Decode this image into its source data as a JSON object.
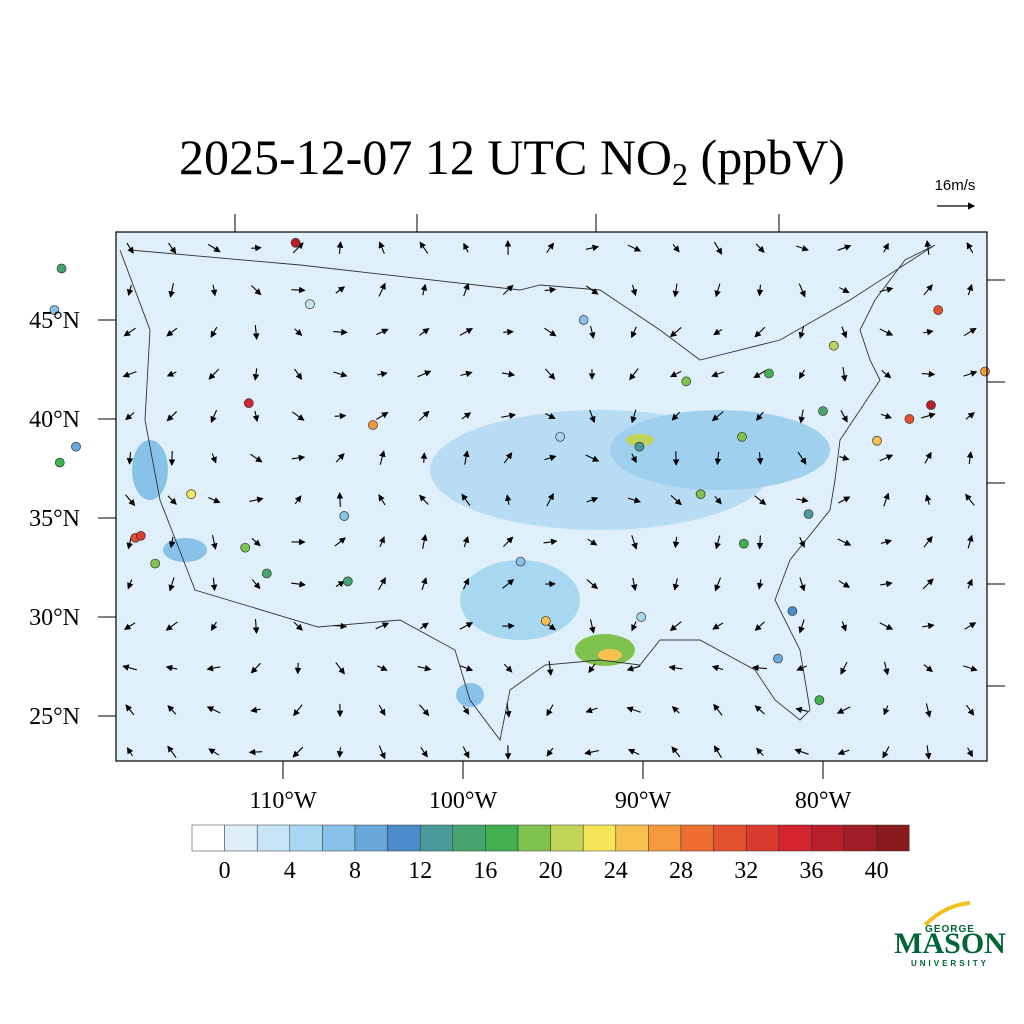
{
  "title": {
    "main": "2025-12-07 12 UTC NO",
    "subscript": "2",
    "suffix": " (ppbV)"
  },
  "wind_reference": "16m/s",
  "map": {
    "lat_ticks": [
      {
        "value": 25,
        "label": "25°N"
      },
      {
        "value": 30,
        "label": "30°N"
      },
      {
        "value": 35,
        "label": "35°N"
      },
      {
        "value": 40,
        "label": "40°N"
      },
      {
        "value": 45,
        "label": "45°N"
      }
    ],
    "lon_ticks": [
      {
        "value": -110,
        "label": "110°W"
      },
      {
        "value": -100,
        "label": "100°W"
      },
      {
        "value": -90,
        "label": "90°W"
      },
      {
        "value": -80,
        "label": "80°W"
      }
    ],
    "stations": [
      {
        "lon": -122.3,
        "lat": 47.6,
        "value": 14
      },
      {
        "lon": -122.7,
        "lat": 45.5,
        "value": 6
      },
      {
        "lon": -122.4,
        "lat": 37.8,
        "value": 16
      },
      {
        "lon": -121.5,
        "lat": 38.6,
        "value": 8
      },
      {
        "lon": -118.2,
        "lat": 34.0,
        "value": 30
      },
      {
        "lon": -117.9,
        "lat": 34.1,
        "value": 32
      },
      {
        "lon": -117.1,
        "lat": 32.7,
        "value": 18
      },
      {
        "lon": -115.1,
        "lat": 36.2,
        "value": 22
      },
      {
        "lon": -112.1,
        "lat": 33.5,
        "value": 18
      },
      {
        "lon": -110.9,
        "lat": 32.2,
        "value": 14
      },
      {
        "lon": -111.9,
        "lat": 40.8,
        "value": 34
      },
      {
        "lon": -105.0,
        "lat": 39.7,
        "value": 26
      },
      {
        "lon": -106.6,
        "lat": 35.1,
        "value": 6
      },
      {
        "lon": -106.4,
        "lat": 31.8,
        "value": 14
      },
      {
        "lon": -108.5,
        "lat": 45.8,
        "value": 2
      },
      {
        "lon": -96.8,
        "lat": 32.8,
        "value": 6
      },
      {
        "lon": -95.4,
        "lat": 29.8,
        "value": 24
      },
      {
        "lon": -90.1,
        "lat": 30.0,
        "value": 4
      },
      {
        "lon": -87.6,
        "lat": 41.9,
        "value": 18
      },
      {
        "lon": -83.0,
        "lat": 42.3,
        "value": 16
      },
      {
        "lon": -79.4,
        "lat": 43.7,
        "value": 20
      },
      {
        "lon": -74.0,
        "lat": 40.7,
        "value": 36
      },
      {
        "lon": -75.2,
        "lat": 40.0,
        "value": 30
      },
      {
        "lon": -71.0,
        "lat": 42.4,
        "value": 26
      },
      {
        "lon": -77.0,
        "lat": 38.9,
        "value": 24
      },
      {
        "lon": -84.4,
        "lat": 33.7,
        "value": 16
      },
      {
        "lon": -80.2,
        "lat": 25.8,
        "value": 16
      },
      {
        "lon": -82.5,
        "lat": 27.9,
        "value": 8
      },
      {
        "lon": -81.7,
        "lat": 30.3,
        "value": 10
      },
      {
        "lon": -80.8,
        "lat": 35.2,
        "value": 12
      },
      {
        "lon": -86.8,
        "lat": 36.2,
        "value": 18
      },
      {
        "lon": -90.2,
        "lat": 38.6,
        "value": 12
      },
      {
        "lon": -93.3,
        "lat": 45.0,
        "value": 6
      },
      {
        "lon": -94.6,
        "lat": 39.1,
        "value": 4
      },
      {
        "lon": -84.5,
        "lat": 39.1,
        "value": 18
      },
      {
        "lon": -80.0,
        "lat": 40.4,
        "value": 14
      },
      {
        "lon": -73.6,
        "lat": 45.5,
        "value": 30
      },
      {
        "lon": -109.3,
        "lat": 48.9,
        "value": 36
      }
    ]
  },
  "colorbar": {
    "clim": [
      0,
      40
    ],
    "ticks": [
      0,
      4,
      8,
      12,
      16,
      20,
      24,
      28,
      32,
      36,
      40
    ],
    "colors": [
      "#ffffff",
      "#deeff9",
      "#c6e6f7",
      "#a8d8f1",
      "#87c2e8",
      "#68a8db",
      "#4a8ccb",
      "#4a9a9a",
      "#46a46e",
      "#41b04f",
      "#7fc24e",
      "#c0d457",
      "#f8e65a",
      "#f8c04c",
      "#f59a3c",
      "#ee6e2f",
      "#e4512f",
      "#db3a2e",
      "#d42430",
      "#b81f2a",
      "#a11d25",
      "#8b1a1e"
    ]
  },
  "logo": {
    "top": "GEORGE",
    "main": "MASON",
    "bottom": "UNIVERSITY"
  }
}
